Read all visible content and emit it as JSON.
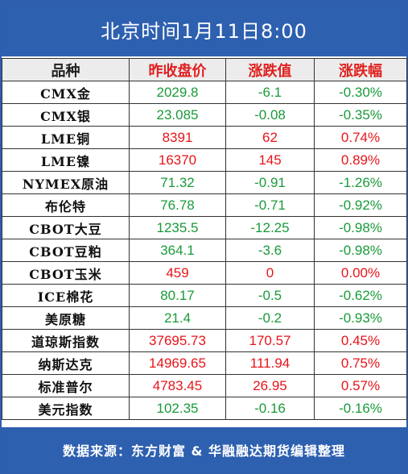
{
  "header": {
    "title": "北京时间1月11日8:00"
  },
  "table": {
    "columns": [
      "品种",
      "昨收盘价",
      "涨跌值",
      "涨跌幅"
    ],
    "rows": [
      [
        "CMX金",
        "2029.8",
        "-6.1",
        "-0.30%"
      ],
      [
        "CMX银",
        "23.085",
        "-0.08",
        "-0.35%"
      ],
      [
        "LME铜",
        "8391",
        "62",
        "0.74%"
      ],
      [
        "LME镍",
        "16370",
        "145",
        "0.89%"
      ],
      [
        "NYMEX原油",
        "71.32",
        "-0.91",
        "-1.26%"
      ],
      [
        "布伦特",
        "76.78",
        "-0.71",
        "-0.92%"
      ],
      [
        "CBOT大豆",
        "1235.5",
        "-12.25",
        "-0.98%"
      ],
      [
        "CBOT豆粕",
        "364.1",
        "-3.6",
        "-0.98%"
      ],
      [
        "CBOT玉米",
        "459",
        "0",
        "0.00%"
      ],
      [
        "ICE棉花",
        "80.17",
        "-0.5",
        "-0.62%"
      ],
      [
        "美原糖",
        "21.4",
        "-0.2",
        "-0.93%"
      ],
      [
        "道琼斯指数",
        "37695.73",
        "170.57",
        "0.45%"
      ],
      [
        "纳斯达克",
        "14969.65",
        "111.94",
        "0.75%"
      ],
      [
        "标准普尔",
        "4783.45",
        "26.95",
        "0.57%"
      ],
      [
        "美元指数",
        "102.35",
        "-0.16",
        "-0.16%"
      ]
    ]
  },
  "footer": {
    "source": "数据来源：东方财富 & 华融融达期货编辑整理"
  }
}
